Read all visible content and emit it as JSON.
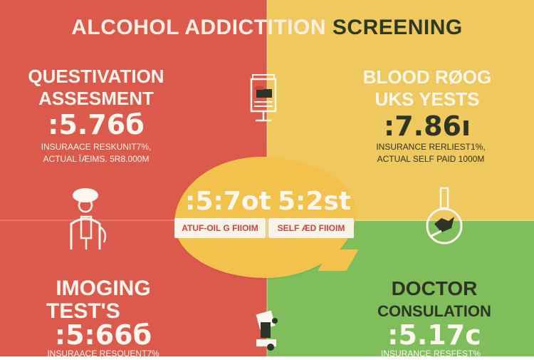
{
  "title": {
    "part1": "ALCOHOL ADDICTITION",
    "part2": "SCREENING"
  },
  "colors": {
    "red": "#dc5a4c",
    "yellow": "#efc95d",
    "green": "#80be5c",
    "cream": "#fdf6ee",
    "dark": "#2f3526"
  },
  "sections": {
    "questionnaire": {
      "heading_line1": "QUESTIVATION",
      "heading_line2": "ASSESMENT",
      "price": ":5.76б",
      "line1": "INSURAACE RESKUNIT7%,",
      "line2": "ACTUAL ÏÆIMS. 5R8.000M",
      "icon": "clipboard-doctor-icon"
    },
    "blood": {
      "heading_line1": "BLOOD  RØOG",
      "heading_line2": "UKS  YESTS",
      "price": ":7.86ı",
      "line1": "INSURANCE RERLIEST1%,",
      "line2": "ACTUAL SELF PAID   1000M",
      "icon": "blood-test-equipment-icon"
    },
    "imaging": {
      "heading_line1": "IMOGING",
      "heading_line2": "TEST'S",
      "price": ":5:66б",
      "line1": "INSURAACE RESQUENT7%",
      "icon": "imaging-device-icon"
    },
    "doctor": {
      "heading_line1": "DOCTOR",
      "heading_line2": "CONSULATION",
      "price": ":5.17с",
      "line1": "INSURANCE RESFEST%",
      "icon": "test-tube-hand-icon"
    },
    "center": {
      "price_left": ":5:7ot",
      "price_right": "5:2st",
      "label_left": "ATUF-OIL G FIIOIM",
      "label_right": "SELF ÆD  FIIOIM",
      "icon": "microscope-icon"
    }
  }
}
